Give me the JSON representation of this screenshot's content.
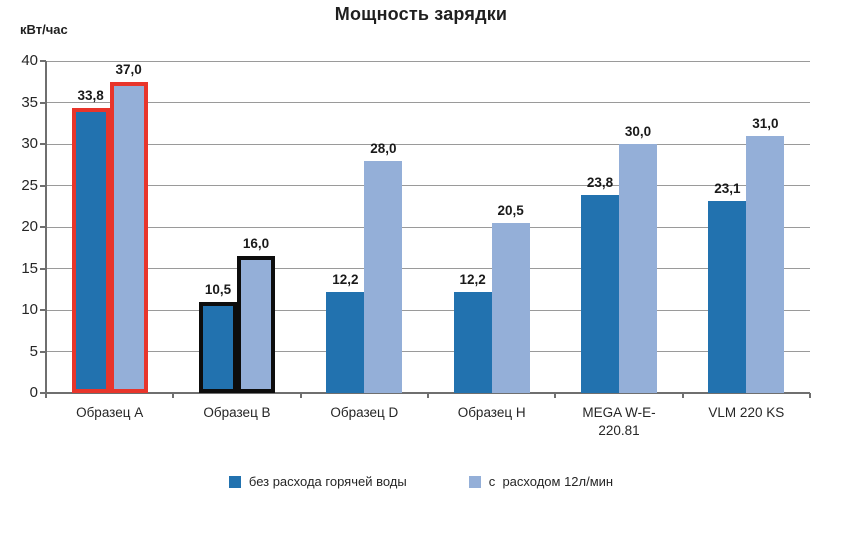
{
  "title": "Мощность зарядки",
  "y_axis": {
    "unit_label": "кВт/час",
    "tick_labels": [
      "0",
      "5",
      "10",
      "15",
      "20",
      "25",
      "30",
      "35",
      "40"
    ]
  },
  "chart_data": {
    "type": "bar",
    "title": "Мощность зарядки",
    "ylabel": "кВт/час",
    "xlabel": "",
    "ylim": [
      0,
      40
    ],
    "ytick_step": 5,
    "grid": true,
    "legend_position": "bottom",
    "categories": [
      "Образец A",
      "Образец B",
      "Образец D",
      "Образец H",
      "MEGA W-E-220.81",
      "VLM 220 KS"
    ],
    "series": [
      {
        "name": "без расхода горячей воды",
        "color": "#2272af",
        "values": [
          33.8,
          10.5,
          12.2,
          12.2,
          23.8,
          23.1
        ],
        "value_labels": [
          "33,8",
          "10,5",
          "12,2",
          "12,2",
          "23,8",
          "23,1"
        ]
      },
      {
        "name": "с  расходом 12л/мин",
        "color": "#94afd8",
        "values": [
          37.0,
          16.0,
          28.0,
          20.5,
          30.0,
          31.0
        ],
        "value_labels": [
          "37,0",
          "16,0",
          "28,0",
          "20,5",
          "30,0",
          "31,0"
        ]
      }
    ],
    "highlights": [
      {
        "category_index": 0,
        "category": "Образец A",
        "outline_color": "#e8352b"
      },
      {
        "category_index": 1,
        "category": "Образец B",
        "outline_color": "#0d0d0d"
      }
    ]
  },
  "colors": {
    "grid": "#9a9a9a",
    "axis": "#6f6f6f",
    "text": "#262626",
    "background": "#ffffff"
  }
}
